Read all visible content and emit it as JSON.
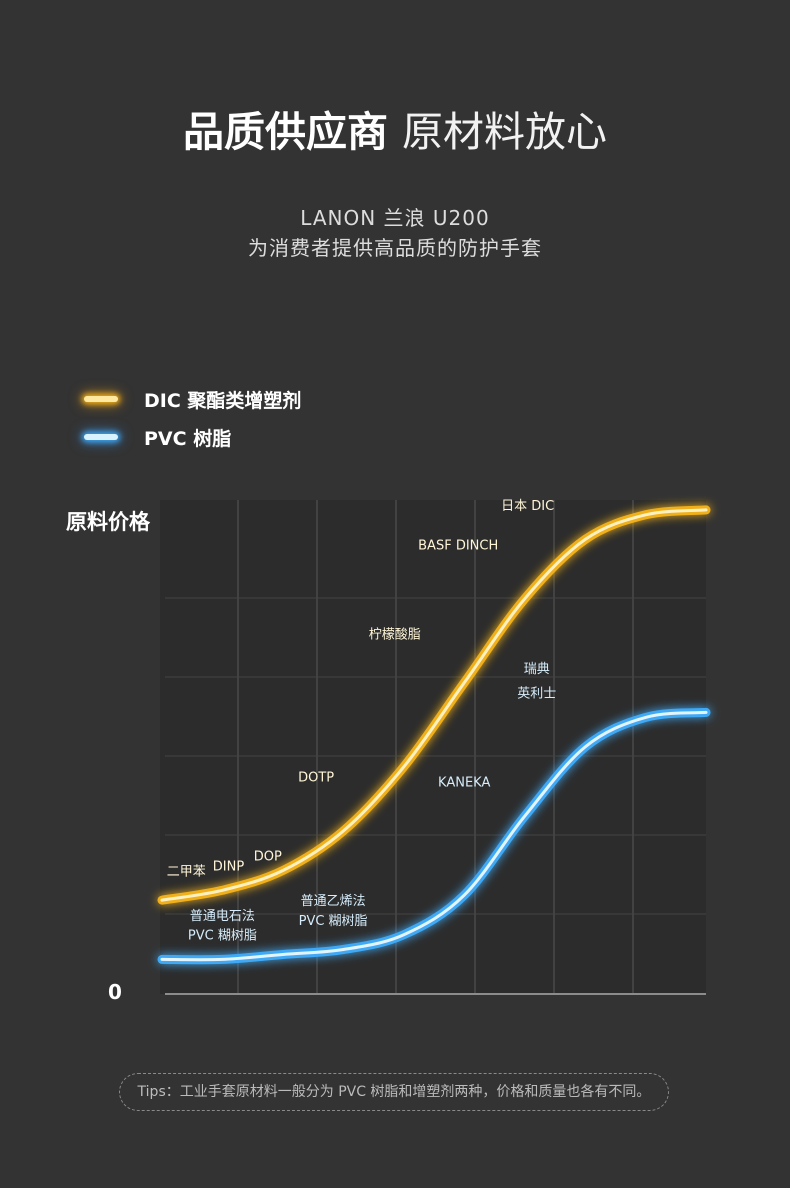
{
  "header": {
    "title_bold": "品质供应商",
    "title_light": "原材料放心",
    "subtitle_1": "LANON 兰浪 U200",
    "subtitle_2": "为消费者提供高品质的防护手套"
  },
  "legend": [
    {
      "label": "DIC 聚酯类增塑剂",
      "color": "#f0b01c"
    },
    {
      "label": "PVC 树脂",
      "color": "#3fa9f5"
    }
  ],
  "chart_data": {
    "type": "line",
    "ylabel": "原料价格",
    "y_origin_label": "0",
    "grid": true,
    "series": [
      {
        "name": "DIC 聚酯类增塑剂",
        "color": "#f0b01c",
        "values": [
          0.19,
          0.21,
          0.25,
          0.33,
          0.46,
          0.63,
          0.8,
          0.92,
          0.97,
          0.98
        ],
        "annotations": [
          {
            "text": "二甲苯",
            "at": 0.4,
            "y": 0.24
          },
          {
            "text": "DINP",
            "at": 1.1,
            "y": 0.25
          },
          {
            "text": "DOP",
            "at": 1.75,
            "y": 0.27
          },
          {
            "text": "DOTP",
            "at": 2.55,
            "y": 0.43
          },
          {
            "text": "柠檬酸脂",
            "at": 3.85,
            "y": 0.72
          },
          {
            "text": "BASF DINCH",
            "at": 4.9,
            "y": 0.9
          },
          {
            "text": "日本 DIC",
            "at": 6.05,
            "y": 0.98
          }
        ]
      },
      {
        "name": "PVC 树脂",
        "color": "#3fa9f5",
        "values": [
          0.07,
          0.07,
          0.08,
          0.09,
          0.12,
          0.2,
          0.36,
          0.5,
          0.56,
          0.57
        ],
        "annotations": [
          {
            "text": "普通电石法",
            "at": 1.0,
            "y": 0.15
          },
          {
            "text": "PVC 糊树脂",
            "at": 1.0,
            "y": 0.11
          },
          {
            "text": "普通乙烯法",
            "at": 2.83,
            "y": 0.18
          },
          {
            "text": "PVC 糊树脂",
            "at": 2.83,
            "y": 0.14
          },
          {
            "text": "KANEKA",
            "at": 5.0,
            "y": 0.42
          },
          {
            "text": "瑞典",
            "at": 6.2,
            "y": 0.65
          },
          {
            "text": "英利士",
            "at": 6.2,
            "y": 0.6
          }
        ]
      }
    ]
  },
  "tips": "Tips：工业手套原材料一般分为 PVC 树脂和增塑剂两种，价格和质量也各有不同。"
}
